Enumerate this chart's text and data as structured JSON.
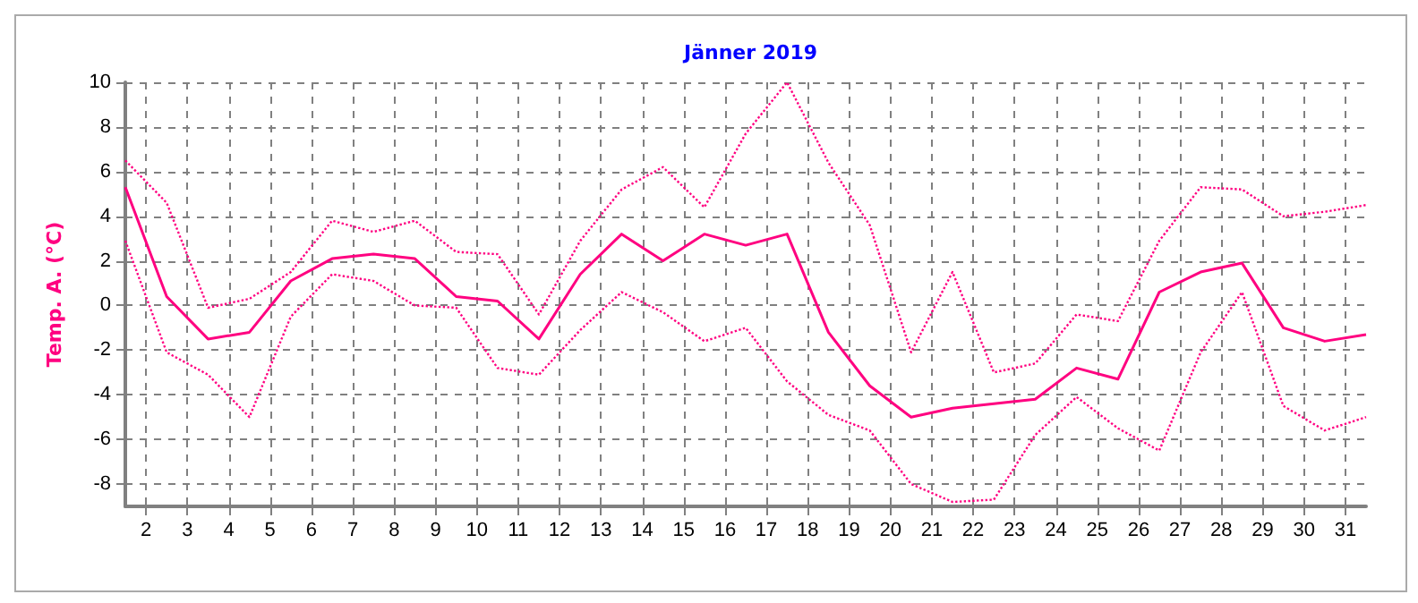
{
  "chart_data": {
    "type": "line",
    "title": "Jänner 2019",
    "ylabel": "Temp. A. (°C)",
    "x": [
      1.5,
      2.5,
      3.5,
      4.5,
      5.5,
      6.5,
      7.5,
      8.5,
      9.5,
      10.5,
      11.5,
      12.5,
      13.5,
      14.5,
      15.5,
      16.5,
      17.5,
      18.5,
      19.5,
      20.5,
      21.5,
      22.5,
      23.5,
      24.5,
      25.5,
      26.5,
      27.5,
      28.5,
      29.5,
      30.5,
      31.5
    ],
    "series": [
      {
        "color": "#ff0080",
        "line_style": "dotted",
        "values": [
          6.5,
          4.6,
          -0.1,
          0.3,
          1.5,
          3.8,
          3.3,
          3.8,
          2.4,
          2.3,
          -0.4,
          2.9,
          5.2,
          6.2,
          4.4,
          7.7,
          10.0,
          6.4,
          3.6,
          -2.1,
          1.5,
          -3.0,
          -2.6,
          -0.4,
          -0.7,
          2.9,
          5.3,
          5.2,
          4.0,
          4.2,
          4.5
        ]
      },
      {
        "color": "#ff0080",
        "line_style": "solid",
        "values": [
          5.3,
          0.4,
          -1.5,
          -1.2,
          1.1,
          2.1,
          2.3,
          2.1,
          0.4,
          0.2,
          -1.5,
          1.4,
          3.2,
          2.0,
          3.2,
          2.7,
          3.2,
          -1.2,
          -3.6,
          -5.0,
          -4.6,
          -4.4,
          -4.2,
          -2.8,
          -3.3,
          0.6,
          1.5,
          1.9,
          -1.0,
          -1.6,
          -1.3
        ]
      },
      {
        "color": "#ff0080",
        "line_style": "dotted",
        "values": [
          2.9,
          -2.1,
          -3.1,
          -5.0,
          -0.5,
          1.4,
          1.1,
          0.0,
          -0.1,
          -2.8,
          -3.1,
          -1.1,
          0.6,
          -0.3,
          -1.6,
          -1.0,
          -3.4,
          -4.9,
          -5.6,
          -8.0,
          -8.8,
          -8.7,
          -5.8,
          -4.1,
          -5.5,
          -6.5,
          -2.1,
          0.6,
          -4.5,
          -5.6,
          -5.0
        ]
      }
    ],
    "xlim": [
      1.5,
      31.5
    ],
    "xticks": [
      2,
      3,
      4,
      5,
      6,
      7,
      8,
      9,
      10,
      11,
      12,
      13,
      14,
      15,
      16,
      17,
      18,
      19,
      20,
      21,
      22,
      23,
      24,
      25,
      26,
      27,
      28,
      29,
      30,
      31
    ],
    "ylim": [
      -9,
      10
    ],
    "yticks": [
      -8,
      -6,
      -4,
      -2,
      0,
      2,
      4,
      6,
      8,
      10
    ],
    "grid": true,
    "marker": "none"
  }
}
